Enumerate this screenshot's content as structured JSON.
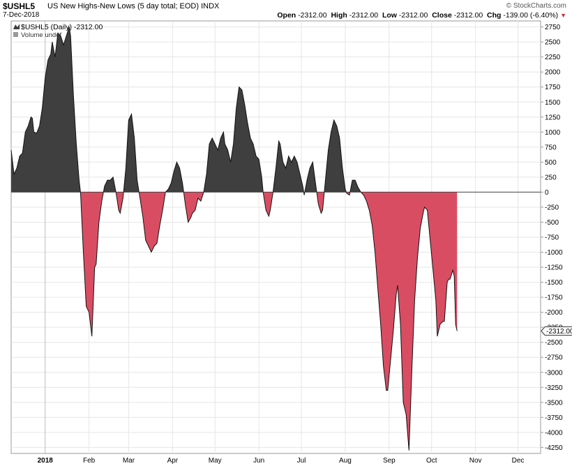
{
  "header": {
    "symbol": "$USHL5",
    "description": "US New Highs-New Lows (5 day total; EOD)",
    "exchange": "INDX",
    "date": "7-Dec-2018",
    "credit": "© StockCharts.com",
    "open_label": "Open",
    "open_value": "-2312.00",
    "high_label": "High",
    "high_value": "-2312.00",
    "low_label": "Low",
    "low_value": "-2312.00",
    "close_label": "Close",
    "close_value": "-2312.00",
    "chg_label": "Chg",
    "chg_value": "-139.00 (-6.40%)",
    "chg_icon": "down-triangle-icon"
  },
  "colors": {
    "positive_fill": "#3f3f3f",
    "negative_fill": "#d94d63",
    "line": "#111111",
    "grid": "#e6e6e6"
  },
  "chart_data": {
    "type": "area",
    "title": "$USHL5 US New Highs-New Lows (5 day total; EOD)",
    "legend": [
      "$USHL5 (Daily) -2312.00",
      "Volume undef"
    ],
    "last_value_label": "-2312.00",
    "ylim": [
      -4350,
      2850
    ],
    "yticks": [
      2750,
      2500,
      2250,
      2000,
      1750,
      1500,
      1250,
      1000,
      750,
      500,
      250,
      0,
      -250,
      -500,
      -750,
      -1000,
      -1250,
      -1500,
      -1750,
      -2000,
      -2250,
      -2500,
      -2750,
      -3000,
      -3250,
      -3500,
      -3750,
      -4000,
      -4250
    ],
    "ytick_labels": [
      "2750",
      "2500",
      "2250",
      "2000",
      "1750",
      "1500",
      "1250",
      "1000",
      "750",
      "500",
      "250",
      "0",
      "-250",
      "-500",
      "-750",
      "-1000",
      "-1250",
      "-1500",
      "-1750",
      "-2000",
      "-2250",
      "-2500",
      "-2750",
      "-3000",
      "-3250",
      "-3500",
      "-3750",
      "-4000",
      "-4250"
    ],
    "x_labels": [
      "2018",
      "Feb",
      "Mar",
      "Apr",
      "May",
      "Jun",
      "Jul",
      "Aug",
      "Sep",
      "Oct",
      "Nov",
      "Dec"
    ],
    "x_label_days": [
      0,
      31,
      59,
      90,
      120,
      151,
      181,
      212,
      243,
      273,
      304,
      334
    ],
    "xlim": [
      -24,
      350
    ],
    "points": [
      [
        -24,
        700
      ],
      [
        -22,
        300
      ],
      [
        -20,
        400
      ],
      [
        -18,
        600
      ],
      [
        -16,
        650
      ],
      [
        -14,
        1000
      ],
      [
        -12,
        1100
      ],
      [
        -10,
        1250
      ],
      [
        -9,
        1230
      ],
      [
        -8,
        1000
      ],
      [
        -6,
        980
      ],
      [
        -4,
        1100
      ],
      [
        -2,
        1400
      ],
      [
        0,
        1900
      ],
      [
        2,
        2200
      ],
      [
        4,
        2300
      ],
      [
        5,
        2500
      ],
      [
        7,
        2250
      ],
      [
        9,
        2650
      ],
      [
        11,
        2600
      ],
      [
        13,
        2450
      ],
      [
        15,
        2600
      ],
      [
        17,
        2750
      ],
      [
        18,
        2600
      ],
      [
        20,
        1600
      ],
      [
        22,
        800
      ],
      [
        24,
        200
      ],
      [
        25,
        0
      ],
      [
        27,
        -1000
      ],
      [
        29,
        -1900
      ],
      [
        31,
        -2000
      ],
      [
        33,
        -2400
      ],
      [
        35,
        -1250
      ],
      [
        36,
        -1200
      ],
      [
        38,
        -500
      ],
      [
        40,
        -150
      ],
      [
        42,
        100
      ],
      [
        44,
        200
      ],
      [
        46,
        200
      ],
      [
        48,
        250
      ],
      [
        50,
        0
      ],
      [
        52,
        -300
      ],
      [
        53,
        -350
      ],
      [
        55,
        -100
      ],
      [
        57,
        400
      ],
      [
        59,
        1200
      ],
      [
        61,
        1300
      ],
      [
        63,
        900
      ],
      [
        65,
        200
      ],
      [
        67,
        -100
      ],
      [
        69,
        -400
      ],
      [
        71,
        -800
      ],
      [
        73,
        -900
      ],
      [
        75,
        -1000
      ],
      [
        77,
        -900
      ],
      [
        79,
        -850
      ],
      [
        81,
        -550
      ],
      [
        83,
        -300
      ],
      [
        85,
        0
      ],
      [
        87,
        50
      ],
      [
        89,
        150
      ],
      [
        91,
        350
      ],
      [
        93,
        500
      ],
      [
        95,
        400
      ],
      [
        97,
        150
      ],
      [
        99,
        -200
      ],
      [
        101,
        -500
      ],
      [
        103,
        -420
      ],
      [
        104,
        -350
      ],
      [
        106,
        -300
      ],
      [
        108,
        -100
      ],
      [
        110,
        -150
      ],
      [
        112,
        0
      ],
      [
        114,
        300
      ],
      [
        116,
        800
      ],
      [
        118,
        900
      ],
      [
        120,
        800
      ],
      [
        122,
        700
      ],
      [
        124,
        900
      ],
      [
        126,
        1000
      ],
      [
        127,
        800
      ],
      [
        129,
        700
      ],
      [
        131,
        500
      ],
      [
        133,
        800
      ],
      [
        135,
        1400
      ],
      [
        137,
        1750
      ],
      [
        139,
        1700
      ],
      [
        141,
        1450
      ],
      [
        143,
        1150
      ],
      [
        145,
        900
      ],
      [
        147,
        800
      ],
      [
        149,
        600
      ],
      [
        151,
        550
      ],
      [
        153,
        250
      ],
      [
        154,
        0
      ],
      [
        156,
        -300
      ],
      [
        158,
        -400
      ],
      [
        159,
        -300
      ],
      [
        161,
        0
      ],
      [
        163,
        400
      ],
      [
        165,
        850
      ],
      [
        166,
        800
      ],
      [
        168,
        500
      ],
      [
        170,
        400
      ],
      [
        172,
        600
      ],
      [
        174,
        500
      ],
      [
        176,
        600
      ],
      [
        178,
        500
      ],
      [
        180,
        300
      ],
      [
        182,
        100
      ],
      [
        183,
        -50
      ],
      [
        185,
        200
      ],
      [
        187,
        400
      ],
      [
        189,
        500
      ],
      [
        191,
        150
      ],
      [
        193,
        -200
      ],
      [
        195,
        -350
      ],
      [
        196,
        -300
      ],
      [
        198,
        200
      ],
      [
        200,
        700
      ],
      [
        202,
        1000
      ],
      [
        204,
        1200
      ],
      [
        206,
        1100
      ],
      [
        208,
        900
      ],
      [
        210,
        400
      ],
      [
        212,
        50
      ],
      [
        213,
        -20
      ],
      [
        215,
        -50
      ],
      [
        217,
        200
      ],
      [
        219,
        200
      ],
      [
        221,
        80
      ],
      [
        223,
        0
      ],
      [
        225,
        -50
      ],
      [
        227,
        -150
      ],
      [
        229,
        -300
      ],
      [
        231,
        -550
      ],
      [
        233,
        -1000
      ],
      [
        235,
        -1600
      ],
      [
        237,
        -2200
      ],
      [
        239,
        -2900
      ],
      [
        241,
        -3300
      ],
      [
        242,
        -3300
      ],
      [
        244,
        -2800
      ],
      [
        246,
        -2300
      ],
      [
        248,
        -1700
      ],
      [
        249,
        -1550
      ],
      [
        251,
        -2200
      ],
      [
        253,
        -3500
      ],
      [
        255,
        -3700
      ],
      [
        257,
        -4300
      ],
      [
        259,
        -3000
      ],
      [
        261,
        -1800
      ],
      [
        263,
        -1100
      ],
      [
        265,
        -600
      ],
      [
        267,
        -350
      ],
      [
        268,
        -250
      ],
      [
        270,
        -300
      ],
      [
        272,
        -800
      ],
      [
        274,
        -1300
      ],
      [
        276,
        -1800
      ],
      [
        277,
        -2400
      ],
      [
        279,
        -2200
      ],
      [
        281,
        -2150
      ],
      [
        282,
        -2150
      ],
      [
        284,
        -1500
      ],
      [
        285,
        -1450
      ],
      [
        286,
        -1450
      ],
      [
        288,
        -1300
      ],
      [
        289,
        -1400
      ],
      [
        290,
        -2200
      ],
      [
        291,
        -2312
      ]
    ]
  }
}
